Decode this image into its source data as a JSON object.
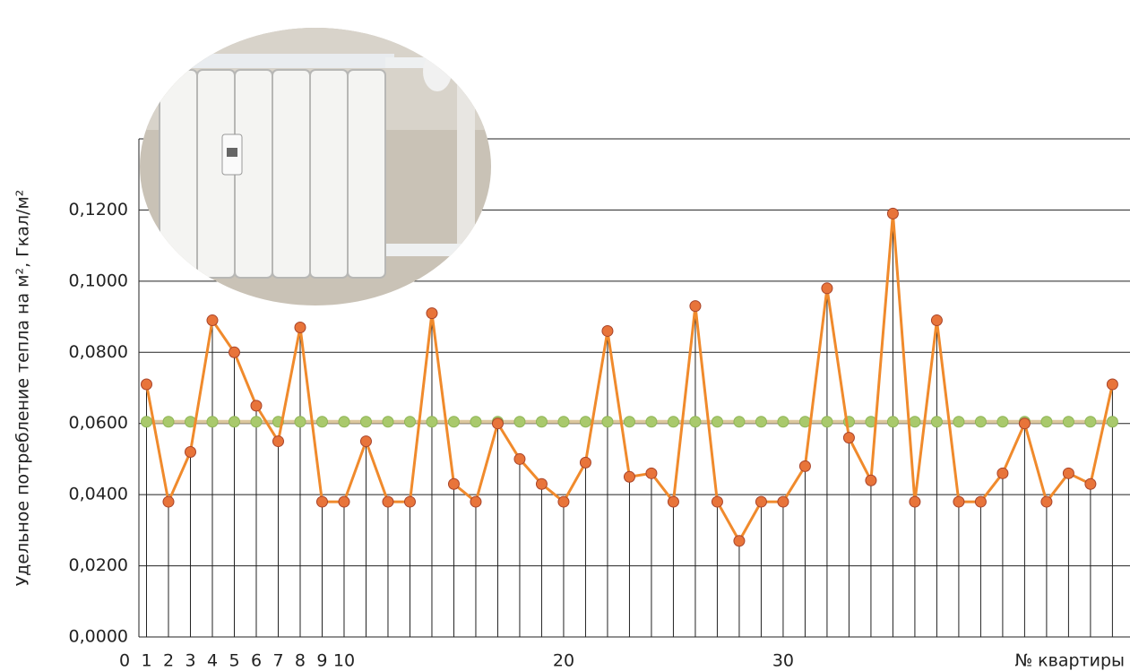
{
  "chart_data": {
    "type": "line",
    "y_label": "Удельное потребление тепла на м², Гкал/м²",
    "x_label": "№ квартиры",
    "x": [
      1,
      2,
      3,
      4,
      5,
      6,
      7,
      8,
      9,
      10,
      11,
      12,
      13,
      14,
      15,
      16,
      17,
      18,
      19,
      20,
      21,
      22,
      23,
      24,
      25,
      26,
      27,
      28,
      29,
      30,
      31,
      32,
      33,
      34,
      35,
      36,
      37,
      38,
      39,
      40,
      41,
      42,
      43,
      44,
      45
    ],
    "series": [
      {
        "color": "#f08a2c",
        "marker_color": "#e8743a",
        "values": [
          0.071,
          0.038,
          0.052,
          0.089,
          0.08,
          0.065,
          0.055,
          0.087,
          0.038,
          0.038,
          0.055,
          0.038,
          0.038,
          0.091,
          0.043,
          0.038,
          0.06,
          0.05,
          0.043,
          0.038,
          0.049,
          0.086,
          0.045,
          0.046,
          0.038,
          0.093,
          0.038,
          0.027,
          0.038,
          0.038,
          0.048,
          0.098,
          0.056,
          0.044,
          0.119,
          0.038,
          0.089,
          0.038,
          0.038,
          0.046,
          0.06,
          0.038,
          0.046,
          0.043,
          0.071
        ]
      },
      {
        "color": "#dcc79e",
        "marker_color": "#a9c96c",
        "values": [
          0.0605,
          0.0605,
          0.0605,
          0.0605,
          0.0605,
          0.0605,
          0.0605,
          0.0605,
          0.0605,
          0.0605,
          0.0605,
          0.0605,
          0.0605,
          0.0605,
          0.0605,
          0.0605,
          0.0605,
          0.0605,
          0.0605,
          0.0605,
          0.0605,
          0.0605,
          0.0605,
          0.0605,
          0.0605,
          0.0605,
          0.0605,
          0.0605,
          0.0605,
          0.0605,
          0.0605,
          0.0605,
          0.0605,
          0.0605,
          0.0605,
          0.0605,
          0.0605,
          0.0605,
          0.0605,
          0.0605,
          0.0605,
          0.0605,
          0.0605,
          0.0605,
          0.0605
        ]
      }
    ],
    "xlim": [
      0,
      45.8
    ],
    "xticks": [
      0,
      1,
      2,
      3,
      4,
      5,
      6,
      7,
      8,
      9,
      10,
      20,
      30
    ],
    "ylim": [
      0,
      0.14
    ],
    "yticks": [
      {
        "value": 0,
        "label": "0,0000"
      },
      {
        "value": 0.02,
        "label": "0,0200"
      },
      {
        "value": 0.04,
        "label": "0,0400"
      },
      {
        "value": 0.06,
        "label": "0,0600"
      },
      {
        "value": 0.08,
        "label": "0,0800"
      },
      {
        "value": 0.1,
        "label": "0,1000"
      },
      {
        "value": 0.12,
        "label": "0,1200"
      }
    ],
    "grid": true
  }
}
